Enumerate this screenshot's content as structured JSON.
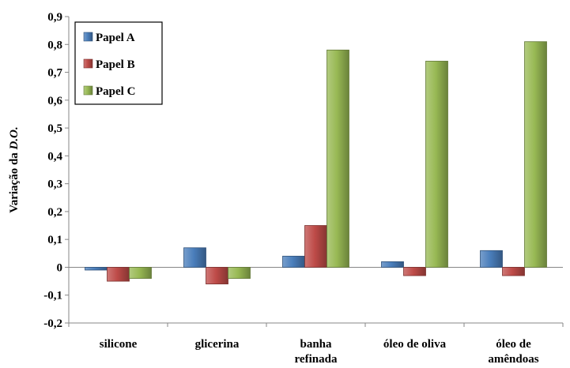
{
  "chart_data": {
    "type": "bar",
    "categories": [
      [
        "silicone"
      ],
      [
        "glicerina"
      ],
      [
        "banha",
        "refinada"
      ],
      [
        "óleo de oliva"
      ],
      [
        "óleo de",
        "amêndoas"
      ]
    ],
    "series": [
      {
        "name": "Papel A",
        "color": "#4a7ebb",
        "values": [
          -0.01,
          0.07,
          0.04,
          0.02,
          0.06
        ]
      },
      {
        "name": "Papel B",
        "color": "#be4b48",
        "values": [
          -0.05,
          -0.06,
          0.15,
          -0.03,
          -0.03
        ]
      },
      {
        "name": "Papel C",
        "color": "#98b954",
        "values": [
          -0.04,
          -0.04,
          0.78,
          0.74,
          0.81
        ]
      }
    ],
    "ylabel_prefix": "Variação da ",
    "ylabel_italic": "D.O.",
    "ylim": [
      -0.2,
      0.9
    ],
    "yticks": [
      "-0,2",
      "-0,1",
      "0",
      "0,1",
      "0,2",
      "0,3",
      "0,4",
      "0,5",
      "0,6",
      "0,7",
      "0,8",
      "0,9"
    ],
    "legend_position": "top-left",
    "grid": false
  }
}
